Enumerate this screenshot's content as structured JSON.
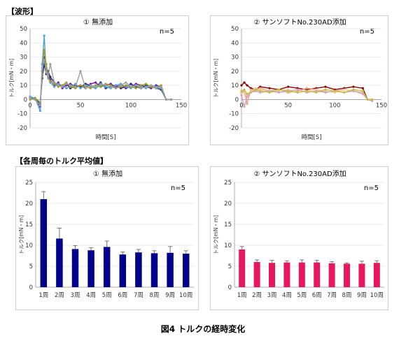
{
  "sections": {
    "waveform_label": "【波形】",
    "average_label": "【各周毎のトルク平均値】"
  },
  "caption": "図4 トルクの経時変化",
  "chart_data": [
    {
      "id": "wave-no-additive",
      "type": "line",
      "title": "① 無添加",
      "annotation": "n=5",
      "xlabel": "時間[S]",
      "ylabel": "トルク[mN・m]",
      "xlim": [
        0,
        150
      ],
      "ylim": [
        -20,
        50
      ],
      "xticks": [
        0,
        50,
        100,
        150
      ],
      "yticks": [
        -20,
        -10,
        0,
        10,
        20,
        30,
        40,
        50
      ],
      "colors": [
        "#1a237e",
        "#6a1b9a",
        "#4fa3d1",
        "#9e9d24",
        "#9e9e9e"
      ],
      "series": [
        {
          "x": [
            0,
            5,
            10,
            12,
            14,
            16,
            18,
            20,
            24,
            28,
            32,
            36,
            40,
            45,
            50,
            55,
            60,
            65,
            70,
            75,
            80,
            85,
            90,
            95,
            100,
            105,
            110,
            115,
            120,
            125,
            130,
            135,
            140
          ],
          "values": [
            1,
            1,
            -3,
            15,
            25,
            18,
            20,
            16,
            12,
            10,
            9,
            11,
            8,
            10,
            9,
            11,
            10,
            9,
            12,
            8,
            9,
            10,
            8,
            9,
            11,
            9,
            8,
            10,
            9,
            8,
            7,
            0,
            0
          ]
        },
        {
          "x": [
            0,
            5,
            10,
            12,
            14,
            16,
            18,
            20,
            24,
            28,
            32,
            36,
            40,
            45,
            50,
            55,
            60,
            65,
            70,
            75,
            80,
            85,
            90,
            95,
            100,
            105,
            110,
            115,
            120,
            125,
            130,
            135,
            140
          ],
          "values": [
            1,
            0,
            -5,
            20,
            30,
            22,
            18,
            14,
            10,
            12,
            8,
            10,
            11,
            9,
            10,
            8,
            11,
            12,
            9,
            10,
            11,
            9,
            10,
            8,
            9,
            11,
            10,
            9,
            8,
            10,
            9,
            0,
            0
          ]
        },
        {
          "x": [
            0,
            5,
            10,
            12,
            14,
            16,
            18,
            20,
            24,
            28,
            32,
            36,
            40,
            45,
            50,
            55,
            60,
            65,
            70,
            75,
            80,
            85,
            90,
            95,
            100,
            105,
            110,
            115,
            120,
            125,
            130,
            135,
            140
          ],
          "values": [
            2,
            1,
            -8,
            25,
            45,
            20,
            15,
            12,
            9,
            11,
            10,
            8,
            9,
            11,
            8,
            10,
            9,
            8,
            10,
            9,
            8,
            10,
            11,
            9,
            8,
            10,
            9,
            8,
            10,
            9,
            8,
            0,
            0
          ]
        },
        {
          "x": [
            0,
            5,
            10,
            12,
            14,
            16,
            18,
            20,
            24,
            28,
            32,
            36,
            40,
            45,
            50,
            55,
            60,
            65,
            70,
            75,
            80,
            85,
            90,
            95,
            100,
            105,
            110,
            115,
            120,
            125,
            130,
            135,
            140
          ],
          "values": [
            0,
            1,
            -2,
            18,
            35,
            25,
            16,
            13,
            11,
            9,
            10,
            12,
            9,
            8,
            10,
            9,
            8,
            10,
            9,
            11,
            10,
            8,
            9,
            10,
            9,
            8,
            10,
            11,
            9,
            8,
            10,
            0,
            0
          ]
        },
        {
          "x": [
            0,
            5,
            10,
            12,
            14,
            16,
            18,
            20,
            24,
            28,
            32,
            36,
            40,
            45,
            50,
            55,
            60,
            65,
            70,
            75,
            80,
            85,
            90,
            95,
            100,
            105,
            110,
            115,
            120,
            125,
            130,
            135,
            140
          ],
          "values": [
            1,
            0,
            -4,
            22,
            28,
            19,
            17,
            25,
            12,
            10,
            9,
            11,
            10,
            9,
            20,
            8,
            10,
            9,
            11,
            10,
            9,
            8,
            10,
            12,
            9,
            10,
            8,
            9,
            10,
            8,
            9,
            0,
            0
          ]
        }
      ]
    },
    {
      "id": "wave-sansoft",
      "type": "line",
      "title": "② サンソフトNo.230AD添加",
      "annotation": "n=5",
      "xlabel": "時間[S]",
      "ylabel": "トルク[mN・m]",
      "xlim": [
        0,
        150
      ],
      "ylim": [
        -20,
        50
      ],
      "xticks": [
        0,
        50,
        100,
        150
      ],
      "yticks": [
        -20,
        -10,
        0,
        10,
        20,
        30,
        40,
        50
      ],
      "colors": [
        "#8b0000",
        "#e8a080",
        "#f5c6a0",
        "#d4a0c0",
        "#c0c040"
      ],
      "series": [
        {
          "x": [
            0,
            3,
            6,
            10,
            15,
            20,
            30,
            40,
            50,
            60,
            70,
            80,
            90,
            100,
            110,
            120,
            130,
            135,
            140
          ],
          "values": [
            10,
            12,
            10,
            8,
            7,
            9,
            8,
            7,
            9,
            8,
            7,
            8,
            9,
            7,
            8,
            9,
            8,
            0,
            0
          ]
        },
        {
          "x": [
            0,
            3,
            6,
            10,
            15,
            20,
            30,
            40,
            50,
            60,
            70,
            80,
            90,
            100,
            110,
            120,
            130,
            135,
            140
          ],
          "values": [
            5,
            6,
            -3,
            7,
            6,
            8,
            6,
            7,
            5,
            6,
            8,
            7,
            5,
            6,
            7,
            6,
            5,
            0,
            0
          ]
        },
        {
          "x": [
            0,
            3,
            6,
            10,
            15,
            20,
            30,
            40,
            50,
            60,
            70,
            80,
            90,
            100,
            110,
            120,
            130,
            135,
            140
          ],
          "values": [
            4,
            5,
            3,
            6,
            8,
            7,
            5,
            6,
            7,
            5,
            6,
            7,
            6,
            5,
            7,
            6,
            5,
            0,
            0
          ]
        },
        {
          "x": [
            0,
            3,
            6,
            10,
            15,
            20,
            30,
            40,
            50,
            60,
            70,
            80,
            90,
            100,
            110,
            120,
            130,
            135,
            140
          ],
          "values": [
            3,
            -5,
            2,
            5,
            6,
            5,
            6,
            5,
            6,
            7,
            5,
            6,
            5,
            6,
            5,
            6,
            4,
            0,
            -1
          ]
        },
        {
          "x": [
            0,
            3,
            6,
            10,
            15,
            20,
            30,
            40,
            50,
            60,
            70,
            80,
            90,
            100,
            110,
            120,
            130,
            135,
            140
          ],
          "values": [
            6,
            7,
            4,
            5,
            7,
            6,
            5,
            7,
            6,
            5,
            6,
            5,
            7,
            6,
            5,
            7,
            6,
            0,
            0
          ]
        }
      ]
    },
    {
      "id": "avg-no-additive",
      "type": "bar",
      "title": "① 無添加",
      "annotation": "n=5",
      "ylabel": "トルク[mN・m]",
      "ylim": [
        0,
        25
      ],
      "yticks": [
        0,
        5,
        10,
        15,
        20,
        25
      ],
      "color": "#00008b",
      "categories": [
        "1周",
        "2周",
        "3周",
        "4周",
        "5周",
        "6周",
        "7周",
        "8周",
        "9周",
        "10周"
      ],
      "values": [
        21.0,
        11.6,
        9.1,
        8.8,
        9.6,
        7.8,
        8.3,
        8.1,
        8.2,
        8.0
      ],
      "errors": [
        1.8,
        2.5,
        0.8,
        0.6,
        1.4,
        0.6,
        0.7,
        0.6,
        1.5,
        0.7
      ]
    },
    {
      "id": "avg-sansoft",
      "type": "bar",
      "title": "② サンソフトNo.230AD添加",
      "annotation": "n=5",
      "ylabel": "トルク[mN・m]",
      "ylim": [
        0,
        25
      ],
      "yticks": [
        0,
        5,
        10,
        15,
        20,
        25
      ],
      "color": "#e8175d",
      "categories": [
        "1周",
        "2周",
        "3周",
        "4周",
        "5周",
        "6周",
        "7周",
        "8周",
        "9周",
        "10周"
      ],
      "values": [
        9.0,
        6.0,
        5.8,
        5.9,
        5.9,
        5.9,
        5.7,
        5.6,
        5.6,
        5.8
      ],
      "errors": [
        0.7,
        0.5,
        0.6,
        0.4,
        0.6,
        0.5,
        0.4,
        0.2,
        0.6,
        0.5
      ]
    }
  ]
}
